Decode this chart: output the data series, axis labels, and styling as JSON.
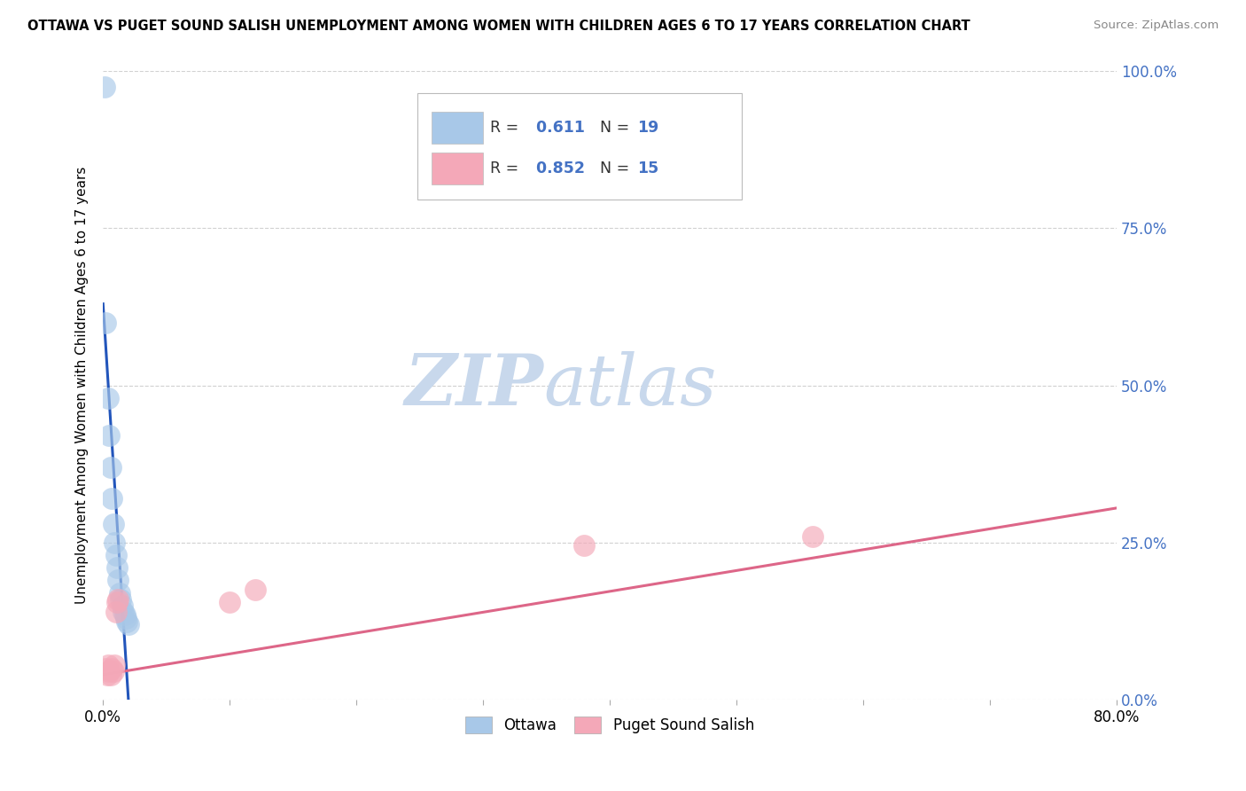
{
  "title": "OTTAWA VS PUGET SOUND SALISH UNEMPLOYMENT AMONG WOMEN WITH CHILDREN AGES 6 TO 17 YEARS CORRELATION CHART",
  "source": "Source: ZipAtlas.com",
  "ylabel": "Unemployment Among Women with Children Ages 6 to 17 years",
  "xlim": [
    0.0,
    0.8
  ],
  "ylim": [
    0.0,
    1.0
  ],
  "ytick_positions": [
    0.0,
    0.25,
    0.5,
    0.75,
    1.0
  ],
  "xtick_positions": [
    0.0,
    0.1,
    0.2,
    0.3,
    0.4,
    0.5,
    0.6,
    0.7,
    0.8
  ],
  "ottawa_R": 0.611,
  "ottawa_N": 19,
  "puget_R": 0.852,
  "puget_N": 15,
  "ottawa_color": "#A8C8E8",
  "puget_color": "#F4A8B8",
  "ottawa_line_color": "#2255BB",
  "puget_line_color": "#DD6688",
  "ottawa_x": [
    0.001,
    0.002,
    0.004,
    0.005,
    0.006,
    0.007,
    0.008,
    0.009,
    0.01,
    0.011,
    0.012,
    0.013,
    0.014,
    0.015,
    0.016,
    0.017,
    0.018,
    0.019,
    0.02
  ],
  "ottawa_y": [
    0.975,
    0.6,
    0.48,
    0.42,
    0.37,
    0.32,
    0.28,
    0.25,
    0.23,
    0.21,
    0.19,
    0.17,
    0.16,
    0.15,
    0.14,
    0.135,
    0.13,
    0.125,
    0.12
  ],
  "puget_x": [
    0.002,
    0.003,
    0.004,
    0.005,
    0.006,
    0.007,
    0.008,
    0.009,
    0.01,
    0.011,
    0.012,
    0.1,
    0.12,
    0.38,
    0.56
  ],
  "puget_y": [
    0.05,
    0.04,
    0.055,
    0.045,
    0.04,
    0.05,
    0.045,
    0.055,
    0.14,
    0.155,
    0.16,
    0.155,
    0.175,
    0.245,
    0.26
  ],
  "ottawa_line_x0": 0.001,
  "ottawa_line_x1": 0.025,
  "puget_line_x0": 0.0,
  "puget_line_x1": 0.8,
  "puget_line_y0": 0.04,
  "puget_line_y1": 0.305,
  "watermark_zip": "ZIP",
  "watermark_atlas": "atlas",
  "watermark_color": "#C8D8EC",
  "bottom_legend_ottawa": "Ottawa",
  "bottom_legend_puget": "Puget Sound Salish"
}
